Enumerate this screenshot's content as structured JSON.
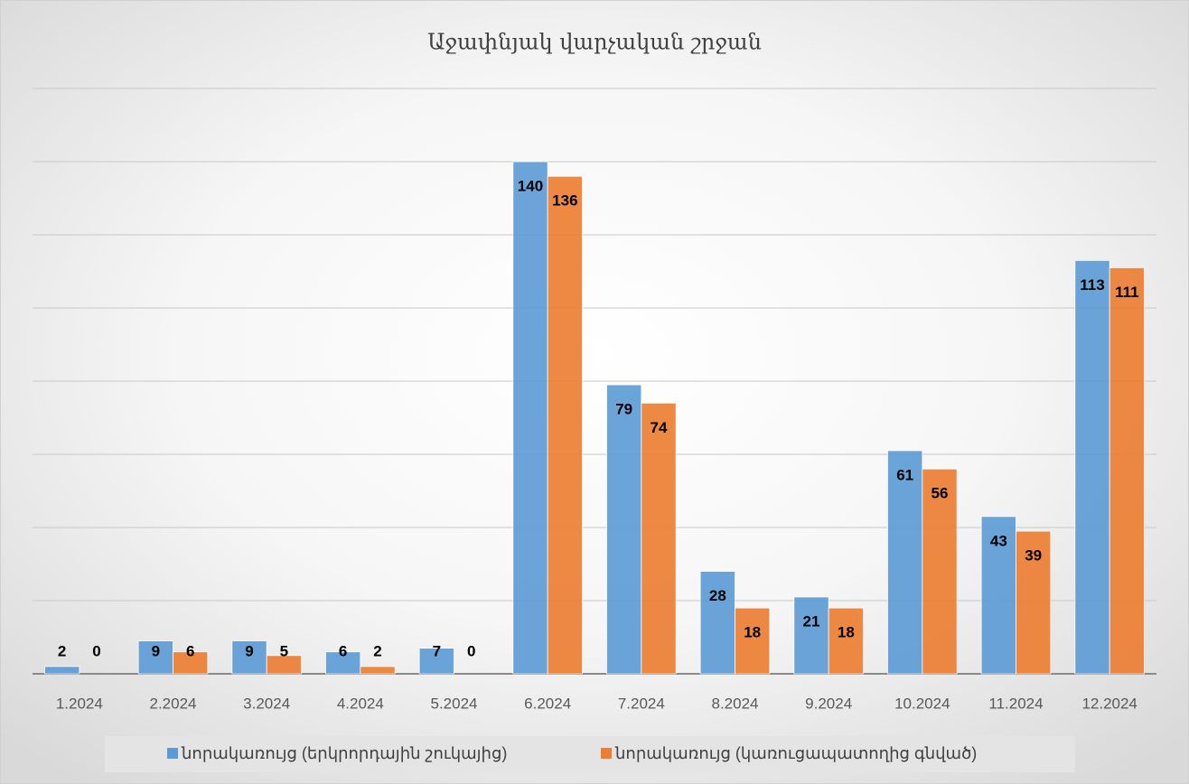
{
  "chart_data": {
    "type": "bar",
    "title": "Աջափնյակ վարչական շրջան",
    "categories": [
      "1.2024",
      "2.2024",
      "3.2024",
      "4.2024",
      "5.2024",
      "6.2024",
      "7.2024",
      "8.2024",
      "9.2024",
      "10.2024",
      "11.2024",
      "12.2024"
    ],
    "series": [
      {
        "name": "նորակառույց (երկրորդային շուկայից)",
        "color": "#5b9bd5",
        "values": [
          2,
          9,
          9,
          6,
          7,
          140,
          79,
          28,
          21,
          61,
          43,
          113
        ]
      },
      {
        "name": "նորակառույց (կառուցապատողից գնված)",
        "color": "#ed7d31",
        "values": [
          0,
          6,
          5,
          2,
          0,
          136,
          74,
          18,
          18,
          56,
          39,
          111
        ]
      }
    ],
    "ylim": [
      0,
      160
    ],
    "yticks": [
      0,
      20,
      40,
      60,
      80,
      100,
      120,
      140,
      160
    ],
    "grid": true,
    "legend": "bottom"
  }
}
